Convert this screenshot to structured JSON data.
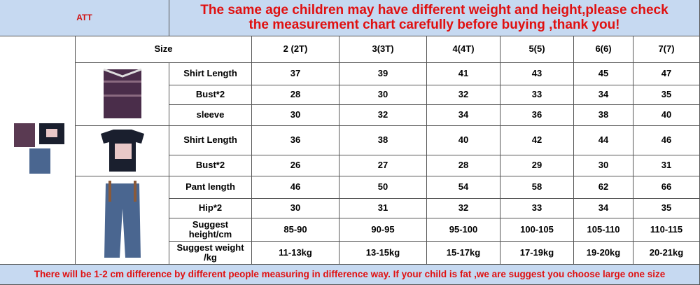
{
  "header": {
    "left": "ATT",
    "title": "The same age children may have different weight and height,please check the measurement chart carefully before buying ,thank you!"
  },
  "table": {
    "size_label": "Size",
    "sizes": [
      "2 (2T)",
      "3(3T)",
      "4(4T)",
      "5(5)",
      "6(6)",
      "7(7)"
    ],
    "rows": [
      {
        "label": "Shirt Length",
        "values": [
          "37",
          "39",
          "41",
          "43",
          "45",
          "47"
        ]
      },
      {
        "label": "Bust*2",
        "values": [
          "28",
          "30",
          "32",
          "33",
          "34",
          "35"
        ]
      },
      {
        "label": "sleeve",
        "values": [
          "30",
          "32",
          "34",
          "36",
          "38",
          "40"
        ]
      },
      {
        "label": "Shirt Length",
        "values": [
          "36",
          "38",
          "40",
          "42",
          "44",
          "46"
        ]
      },
      {
        "label": "Bust*2",
        "values": [
          "26",
          "27",
          "28",
          "29",
          "30",
          "31"
        ]
      },
      {
        "label": "Pant length",
        "values": [
          "46",
          "50",
          "54",
          "58",
          "62",
          "66"
        ]
      },
      {
        "label": "Hip*2",
        "values": [
          "30",
          "31",
          "32",
          "33",
          "34",
          "35"
        ]
      },
      {
        "label": "Suggest height/cm",
        "values": [
          "85-90",
          "90-95",
          "95-100",
          "100-105",
          "105-110",
          "110-115"
        ]
      },
      {
        "label": "Suggest weight /kg",
        "values": [
          "11-13kg",
          "13-15kg",
          "15-17kg",
          "17-19kg",
          "19-20kg",
          "20-21kg"
        ]
      }
    ]
  },
  "footer": {
    "note": "There will be 1-2 cm difference by different people measuring in difference way. If your child is fat ,we are suggest you choose large one size"
  }
}
